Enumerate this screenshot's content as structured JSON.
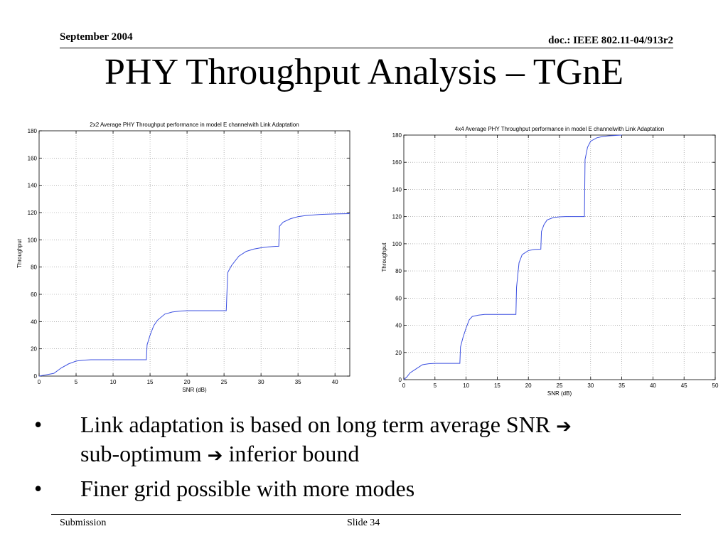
{
  "header": {
    "date": "September 2004",
    "doc_id": "doc.: IEEE 802.11-04/913r2"
  },
  "title": "PHY Throughput Analysis – TGnE",
  "chart_data": [
    {
      "type": "line",
      "title": "2x2 Average PHY Throughput performance in model E channelwith Link Adaptation",
      "xlabel": "SNR (dB)",
      "ylabel": "Throughput",
      "xlim": [
        0,
        42
      ],
      "ylim": [
        0,
        180
      ],
      "xticks": [
        0,
        5,
        10,
        15,
        20,
        25,
        30,
        35,
        40
      ],
      "yticks": [
        0,
        20,
        40,
        60,
        80,
        100,
        120,
        140,
        160,
        180
      ],
      "grid": true,
      "line_color": "#3b4fe0",
      "x": [
        0,
        1,
        2,
        3,
        4,
        5,
        6,
        7,
        8,
        10,
        12,
        14,
        14.5,
        14.6,
        15,
        15.5,
        16,
        17,
        18,
        19,
        20,
        22,
        24,
        25.3,
        25.4,
        25.5,
        26,
        27,
        28,
        29,
        30,
        31,
        32,
        32.4,
        32.5,
        33,
        34,
        35,
        36,
        38,
        40,
        42
      ],
      "y": [
        0,
        1,
        2,
        6,
        9,
        11,
        11.7,
        12,
        12,
        12,
        12,
        12,
        12,
        23,
        30,
        37,
        41,
        45.5,
        47,
        47.7,
        48,
        48,
        48,
        48,
        62,
        76,
        81,
        88,
        91.5,
        93.2,
        94.2,
        94.8,
        95.2,
        95.3,
        110,
        113,
        115.5,
        117,
        117.8,
        118.6,
        119,
        119.2
      ]
    },
    {
      "type": "line",
      "title": "4x4 Average PHY Throughput performance in model E channelwith Link Adaptation",
      "xlabel": "SNR (dB)",
      "ylabel": "Throughput",
      "xlim": [
        0,
        50
      ],
      "ylim": [
        0,
        180
      ],
      "xticks": [
        0,
        5,
        10,
        15,
        20,
        25,
        30,
        35,
        40,
        45,
        50
      ],
      "yticks": [
        0,
        20,
        40,
        60,
        80,
        100,
        120,
        140,
        160,
        180
      ],
      "grid": true,
      "line_color": "#3b4fe0",
      "x": [
        0,
        0.5,
        1,
        2,
        3,
        4,
        5,
        6,
        7,
        8,
        9,
        9.1,
        9.5,
        10,
        10.5,
        11,
        12,
        13,
        14,
        15,
        16,
        17,
        18,
        18.1,
        18.5,
        19,
        20,
        21,
        22,
        22.1,
        22.5,
        23,
        24,
        25,
        26,
        27,
        28,
        29,
        29.1,
        29.5,
        30,
        31,
        32,
        33,
        35
      ],
      "y": [
        0,
        2,
        5,
        8,
        11,
        11.7,
        12,
        12,
        12,
        12,
        12,
        24,
        31,
        38,
        44,
        46.5,
        47.5,
        48,
        48,
        48,
        48,
        48,
        48,
        68,
        86,
        92,
        95,
        95.8,
        96,
        109,
        114,
        117.5,
        119.3,
        119.8,
        120,
        120,
        120,
        120,
        162,
        171,
        175.5,
        178,
        179,
        179.5,
        180
      ]
    }
  ],
  "bullets": [
    {
      "marker": "•",
      "parts": [
        "Link adaptation is based on long term average SNR ",
        " sub-optimum ",
        " inferior bound"
      ]
    },
    {
      "marker": "•",
      "text": "Finer grid possible with more modes"
    }
  ],
  "arrow_glyph": "➔",
  "footer": {
    "left": "Submission",
    "slide": "Slide 34"
  }
}
